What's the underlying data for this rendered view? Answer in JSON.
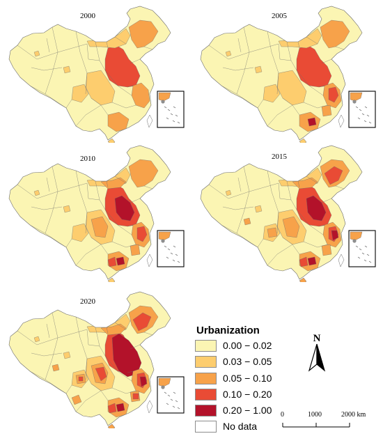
{
  "maps": [
    {
      "year": "2000"
    },
    {
      "year": "2005"
    },
    {
      "year": "2010"
    },
    {
      "year": "2015"
    },
    {
      "year": "2020"
    }
  ],
  "legend": {
    "title": "Urbanization",
    "items": [
      {
        "label": "0.00 − 0.02",
        "color": "#fbf5b3"
      },
      {
        "label": "0.03 − 0.05",
        "color": "#fdcd6e"
      },
      {
        "label": "0.05 − 0.10",
        "color": "#f7a24a"
      },
      {
        "label": "0.10 − 0.20",
        "color": "#e94b35"
      },
      {
        "label": "0.20 − 1.00",
        "color": "#b3122a"
      },
      {
        "label": "No data",
        "color": "#ffffff"
      }
    ]
  },
  "north_arrow": {
    "label": "N"
  },
  "scale": {
    "ticks": [
      "0",
      "1000",
      "2000 km"
    ]
  },
  "colors": {
    "border": "#6b6b6b"
  }
}
